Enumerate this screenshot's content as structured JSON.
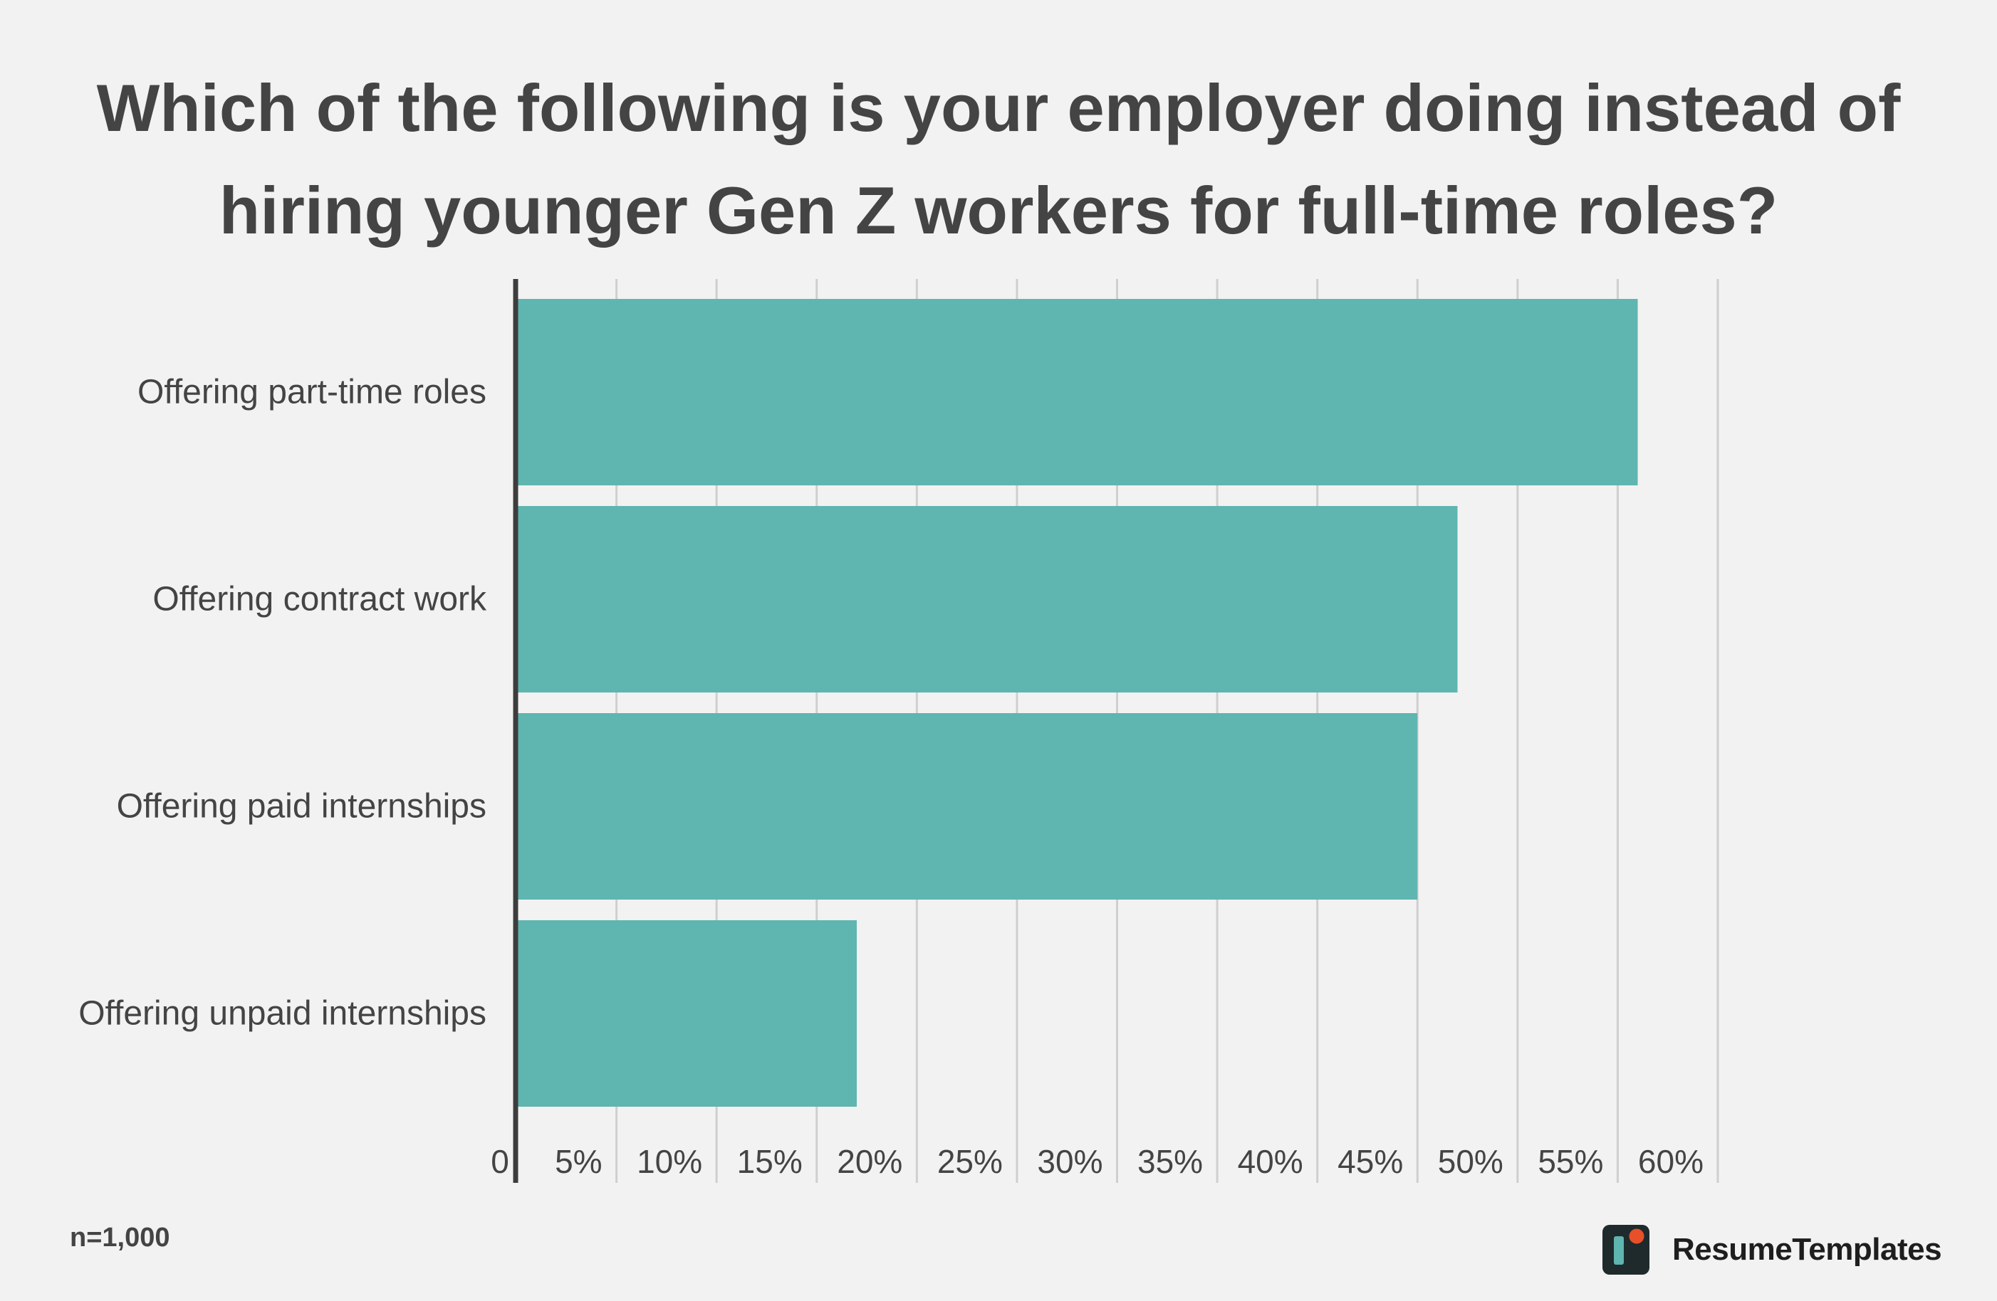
{
  "title_lines": [
    "Which of the following is your employer doing instead of",
    "hiring younger Gen Z workers for full-time roles?"
  ],
  "footnote": "n=1,000",
  "brand": {
    "name": "ResumeTemplates",
    "logo_icon": "resumetemplates-logo"
  },
  "colors": {
    "bar": "#5fb5b0",
    "axis": "#3d3d3d",
    "grid": "#cfcfcf",
    "text": "#444444",
    "background": "#f2f2f2",
    "logo_dark": "#1f2a2d",
    "logo_accent": "#e8502a"
  },
  "chart_data": {
    "type": "bar",
    "orientation": "horizontal",
    "title": "Which of the following is your employer doing instead of hiring younger Gen Z workers for full-time roles?",
    "categories": [
      "Offering part-time roles",
      "Offering contract work",
      "Offering paid internships",
      "Offering unpaid internships"
    ],
    "values": [
      56,
      47,
      45,
      17
    ],
    "unit": "%",
    "xlim": [
      0,
      60
    ],
    "tick_values": [
      0,
      5,
      10,
      15,
      20,
      25,
      30,
      35,
      40,
      45,
      50,
      55,
      60
    ],
    "tick_labels": [
      "0",
      "5%",
      "10%",
      "15%",
      "20%",
      "25%",
      "30%",
      "35%",
      "40%",
      "45%",
      "50%",
      "55%",
      "60%"
    ],
    "xlabel": "",
    "ylabel": "",
    "grid": true,
    "legend": "none"
  }
}
